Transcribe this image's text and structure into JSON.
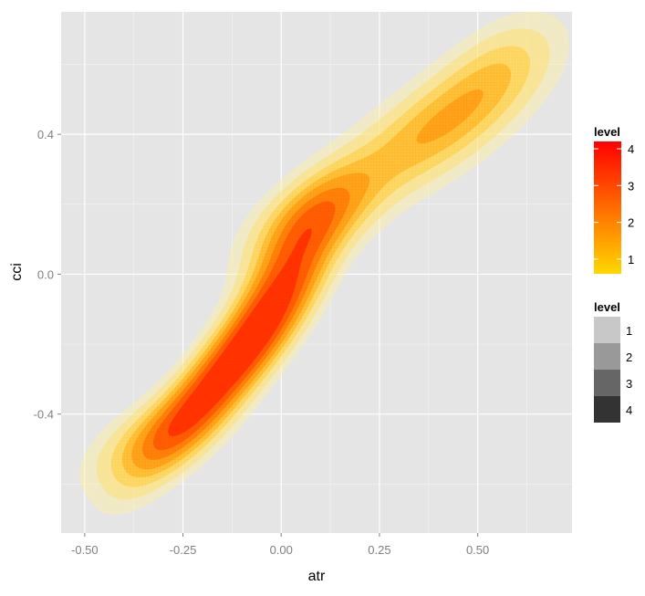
{
  "chart_data": {
    "type": "density2d",
    "xlabel": "atr",
    "ylabel": "cci",
    "xlim": [
      -0.56,
      0.74
    ],
    "ylim": [
      -0.74,
      0.75
    ],
    "x_ticks": [
      {
        "value": -0.5,
        "label": "-0.50"
      },
      {
        "value": -0.25,
        "label": "-0.25"
      },
      {
        "value": 0.0,
        "label": "0.00"
      },
      {
        "value": 0.25,
        "label": "0.25"
      },
      {
        "value": 0.5,
        "label": "0.50"
      }
    ],
    "y_ticks": [
      {
        "value": -0.4,
        "label": "-0.4"
      },
      {
        "value": 0.0,
        "label": "0.0"
      },
      {
        "value": 0.4,
        "label": "0.4"
      }
    ],
    "grid": true,
    "background": "#e5e5e5",
    "legend_position": "right",
    "color_legend": {
      "title": "level",
      "low_color": "#ffd700",
      "high_color": "#ff0000",
      "range": [
        0.6,
        4.2
      ],
      "ticks": [
        {
          "value": 1,
          "label": "1"
        },
        {
          "value": 2,
          "label": "2"
        },
        {
          "value": 3,
          "label": "3"
        },
        {
          "value": 4,
          "label": "4"
        }
      ]
    },
    "alpha_legend": {
      "title": "level",
      "items": [
        {
          "label": "1",
          "color": "#c8c8c8"
        },
        {
          "label": "2",
          "color": "#999999"
        },
        {
          "label": "3",
          "color": "#666666"
        },
        {
          "label": "4",
          "color": "#333333"
        }
      ]
    },
    "contour_levels": [
      {
        "level": 0.3,
        "color": "#fff0a0",
        "opacity": 0.38
      },
      {
        "level": 0.6,
        "color": "#ffe170",
        "opacity": 0.45
      },
      {
        "level": 1.0,
        "color": "#ffcd3c",
        "opacity": 0.5
      },
      {
        "level": 1.4,
        "color": "#ffb321",
        "opacity": 0.62
      },
      {
        "level": 1.8,
        "color": "#ff9a10",
        "opacity": 0.72
      },
      {
        "level": 2.3,
        "color": "#ff7a06",
        "opacity": 0.82
      },
      {
        "level": 2.8,
        "color": "#ff5a02",
        "opacity": 0.9
      },
      {
        "level": 3.4,
        "color": "#ff3200",
        "opacity": 0.95
      }
    ],
    "density_components": [
      {
        "mx": -0.15,
        "my": -0.29,
        "sx": 0.13,
        "sy": 0.17,
        "rho": 0.88,
        "weight": 1.55
      },
      {
        "mx": 0.0,
        "my": -0.03,
        "sx": 0.09,
        "sy": 0.15,
        "rho": 0.75,
        "weight": 1.05
      },
      {
        "mx": 0.09,
        "my": 0.17,
        "sx": 0.11,
        "sy": 0.1,
        "rho": 0.6,
        "weight": 0.8
      },
      {
        "mx": 0.4,
        "my": 0.42,
        "sx": 0.15,
        "sy": 0.13,
        "rho": 0.7,
        "weight": 0.75
      },
      {
        "mx": -0.32,
        "my": -0.47,
        "sx": 0.11,
        "sy": 0.09,
        "rho": 0.6,
        "weight": 0.55
      },
      {
        "mx": 0.56,
        "my": 0.6,
        "sx": 0.1,
        "sy": 0.1,
        "rho": 0.5,
        "weight": 0.3
      }
    ]
  }
}
